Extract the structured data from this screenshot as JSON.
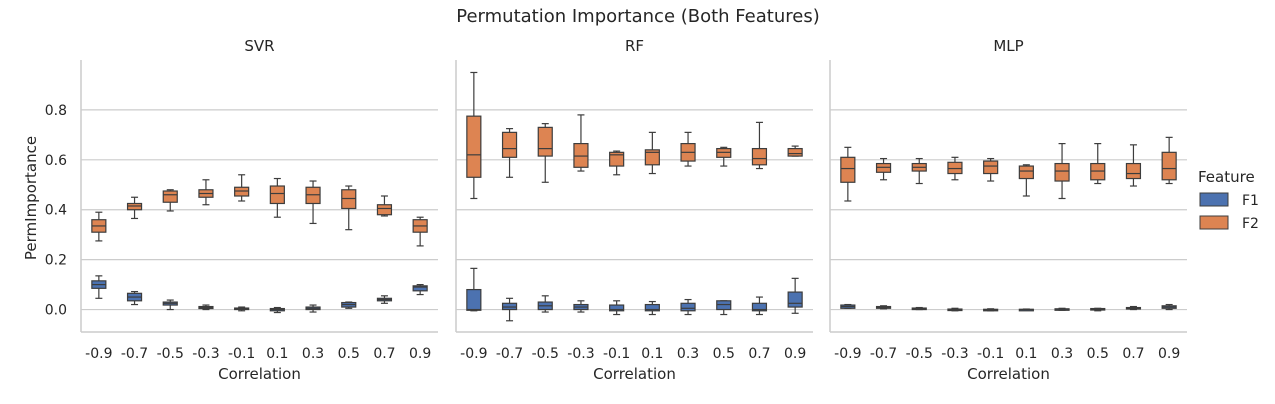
{
  "chart_data": {
    "type": "box",
    "title": "Permutation Importance (Both Features)",
    "ylabel": "PermImportance",
    "xlabel": "Correlation",
    "categories": [
      "-0.9",
      "-0.7",
      "-0.5",
      "-0.3",
      "-0.1",
      "0.1",
      "0.3",
      "0.5",
      "0.7",
      "0.9"
    ],
    "ylim": [
      -0.09,
      1.0
    ],
    "yticks": [
      "0.0",
      "0.2",
      "0.4",
      "0.6",
      "0.8"
    ],
    "grid": "horizontal",
    "legend": {
      "title": "Feature",
      "position": "right",
      "entries": [
        {
          "name": "F1",
          "color": "#4c72b0"
        },
        {
          "name": "F2",
          "color": "#dd8452"
        }
      ]
    },
    "panels": [
      {
        "title": "SVR",
        "series": [
          {
            "name": "F1",
            "boxes": [
              [
                0.045,
                0.085,
                0.1,
                0.115,
                0.135
              ],
              [
                0.02,
                0.035,
                0.05,
                0.065,
                0.072
              ],
              [
                0.0,
                0.018,
                0.025,
                0.03,
                0.038
              ],
              [
                0.0,
                0.004,
                0.008,
                0.012,
                0.018
              ],
              [
                -0.005,
                0.0,
                0.003,
                0.006,
                0.01
              ],
              [
                -0.012,
                -0.005,
                0.0,
                0.004,
                0.008
              ],
              [
                -0.01,
                0.0,
                0.005,
                0.01,
                0.018
              ],
              [
                0.005,
                0.01,
                0.02,
                0.028,
                0.03
              ],
              [
                0.025,
                0.035,
                0.04,
                0.045,
                0.055
              ],
              [
                0.06,
                0.075,
                0.09,
                0.095,
                0.1
              ]
            ]
          },
          {
            "name": "F2",
            "boxes": [
              [
                0.275,
                0.31,
                0.335,
                0.36,
                0.39
              ],
              [
                0.365,
                0.4,
                0.415,
                0.425,
                0.45
              ],
              [
                0.395,
                0.43,
                0.46,
                0.475,
                0.48
              ],
              [
                0.42,
                0.45,
                0.465,
                0.48,
                0.52
              ],
              [
                0.435,
                0.455,
                0.475,
                0.49,
                0.54
              ],
              [
                0.37,
                0.425,
                0.465,
                0.495,
                0.525
              ],
              [
                0.345,
                0.425,
                0.46,
                0.49,
                0.515
              ],
              [
                0.32,
                0.405,
                0.445,
                0.48,
                0.495
              ],
              [
                0.375,
                0.38,
                0.405,
                0.42,
                0.455
              ],
              [
                0.255,
                0.31,
                0.335,
                0.36,
                0.37
              ]
            ]
          }
        ]
      },
      {
        "title": "RF",
        "series": [
          {
            "name": "F1",
            "boxes": [
              [
                -0.005,
                -0.003,
                0.0,
                0.08,
                0.165
              ],
              [
                -0.045,
                0.0,
                0.01,
                0.025,
                0.045
              ],
              [
                -0.01,
                0.0,
                0.015,
                0.03,
                0.055
              ],
              [
                -0.01,
                0.0,
                0.01,
                0.02,
                0.035
              ],
              [
                -0.02,
                -0.005,
                0.0,
                0.018,
                0.035
              ],
              [
                -0.02,
                -0.005,
                0.0,
                0.02,
                0.032
              ],
              [
                -0.02,
                -0.005,
                0.005,
                0.025,
                0.04
              ],
              [
                -0.02,
                0.0,
                0.02,
                0.035,
                0.035
              ],
              [
                -0.02,
                -0.005,
                0.0,
                0.025,
                0.05
              ],
              [
                -0.015,
                0.01,
                0.025,
                0.07,
                0.125
              ]
            ]
          },
          {
            "name": "F2",
            "boxes": [
              [
                0.445,
                0.53,
                0.62,
                0.775,
                0.95
              ],
              [
                0.53,
                0.61,
                0.645,
                0.71,
                0.725
              ],
              [
                0.51,
                0.615,
                0.645,
                0.73,
                0.745
              ],
              [
                0.555,
                0.57,
                0.615,
                0.665,
                0.78
              ],
              [
                0.54,
                0.575,
                0.62,
                0.63,
                0.635
              ],
              [
                0.545,
                0.58,
                0.63,
                0.64,
                0.71
              ],
              [
                0.575,
                0.595,
                0.63,
                0.665,
                0.71
              ],
              [
                0.575,
                0.61,
                0.63,
                0.645,
                0.65
              ],
              [
                0.565,
                0.58,
                0.605,
                0.645,
                0.75
              ],
              [
                0.615,
                0.615,
                0.625,
                0.645,
                0.655
              ]
            ]
          }
        ]
      },
      {
        "title": "MLP",
        "series": [
          {
            "name": "F1",
            "boxes": [
              [
                0.005,
                0.005,
                0.012,
                0.018,
                0.02
              ],
              [
                0.003,
                0.005,
                0.008,
                0.012,
                0.015
              ],
              [
                0.0,
                0.002,
                0.004,
                0.006,
                0.008
              ],
              [
                -0.005,
                -0.003,
                0.0,
                0.002,
                0.005
              ],
              [
                -0.005,
                -0.003,
                -0.002,
                0.001,
                0.003
              ],
              [
                -0.002,
                -0.001,
                0.0,
                0.001,
                0.002
              ],
              [
                -0.003,
                -0.001,
                0.001,
                0.003,
                0.005
              ],
              [
                -0.005,
                -0.001,
                0.002,
                0.004,
                0.005
              ],
              [
                0.0,
                0.003,
                0.005,
                0.008,
                0.012
              ],
              [
                0.0,
                0.005,
                0.01,
                0.015,
                0.02
              ]
            ]
          },
          {
            "name": "F2",
            "boxes": [
              [
                0.435,
                0.51,
                0.565,
                0.61,
                0.65
              ],
              [
                0.52,
                0.55,
                0.57,
                0.585,
                0.605
              ],
              [
                0.505,
                0.555,
                0.57,
                0.585,
                0.605
              ],
              [
                0.52,
                0.545,
                0.565,
                0.59,
                0.61
              ],
              [
                0.515,
                0.545,
                0.575,
                0.595,
                0.605
              ],
              [
                0.455,
                0.525,
                0.555,
                0.575,
                0.58
              ],
              [
                0.445,
                0.515,
                0.555,
                0.585,
                0.665
              ],
              [
                0.505,
                0.52,
                0.555,
                0.585,
                0.665
              ],
              [
                0.495,
                0.525,
                0.545,
                0.585,
                0.66
              ],
              [
                0.505,
                0.52,
                0.565,
                0.63,
                0.69
              ]
            ]
          }
        ]
      }
    ]
  }
}
